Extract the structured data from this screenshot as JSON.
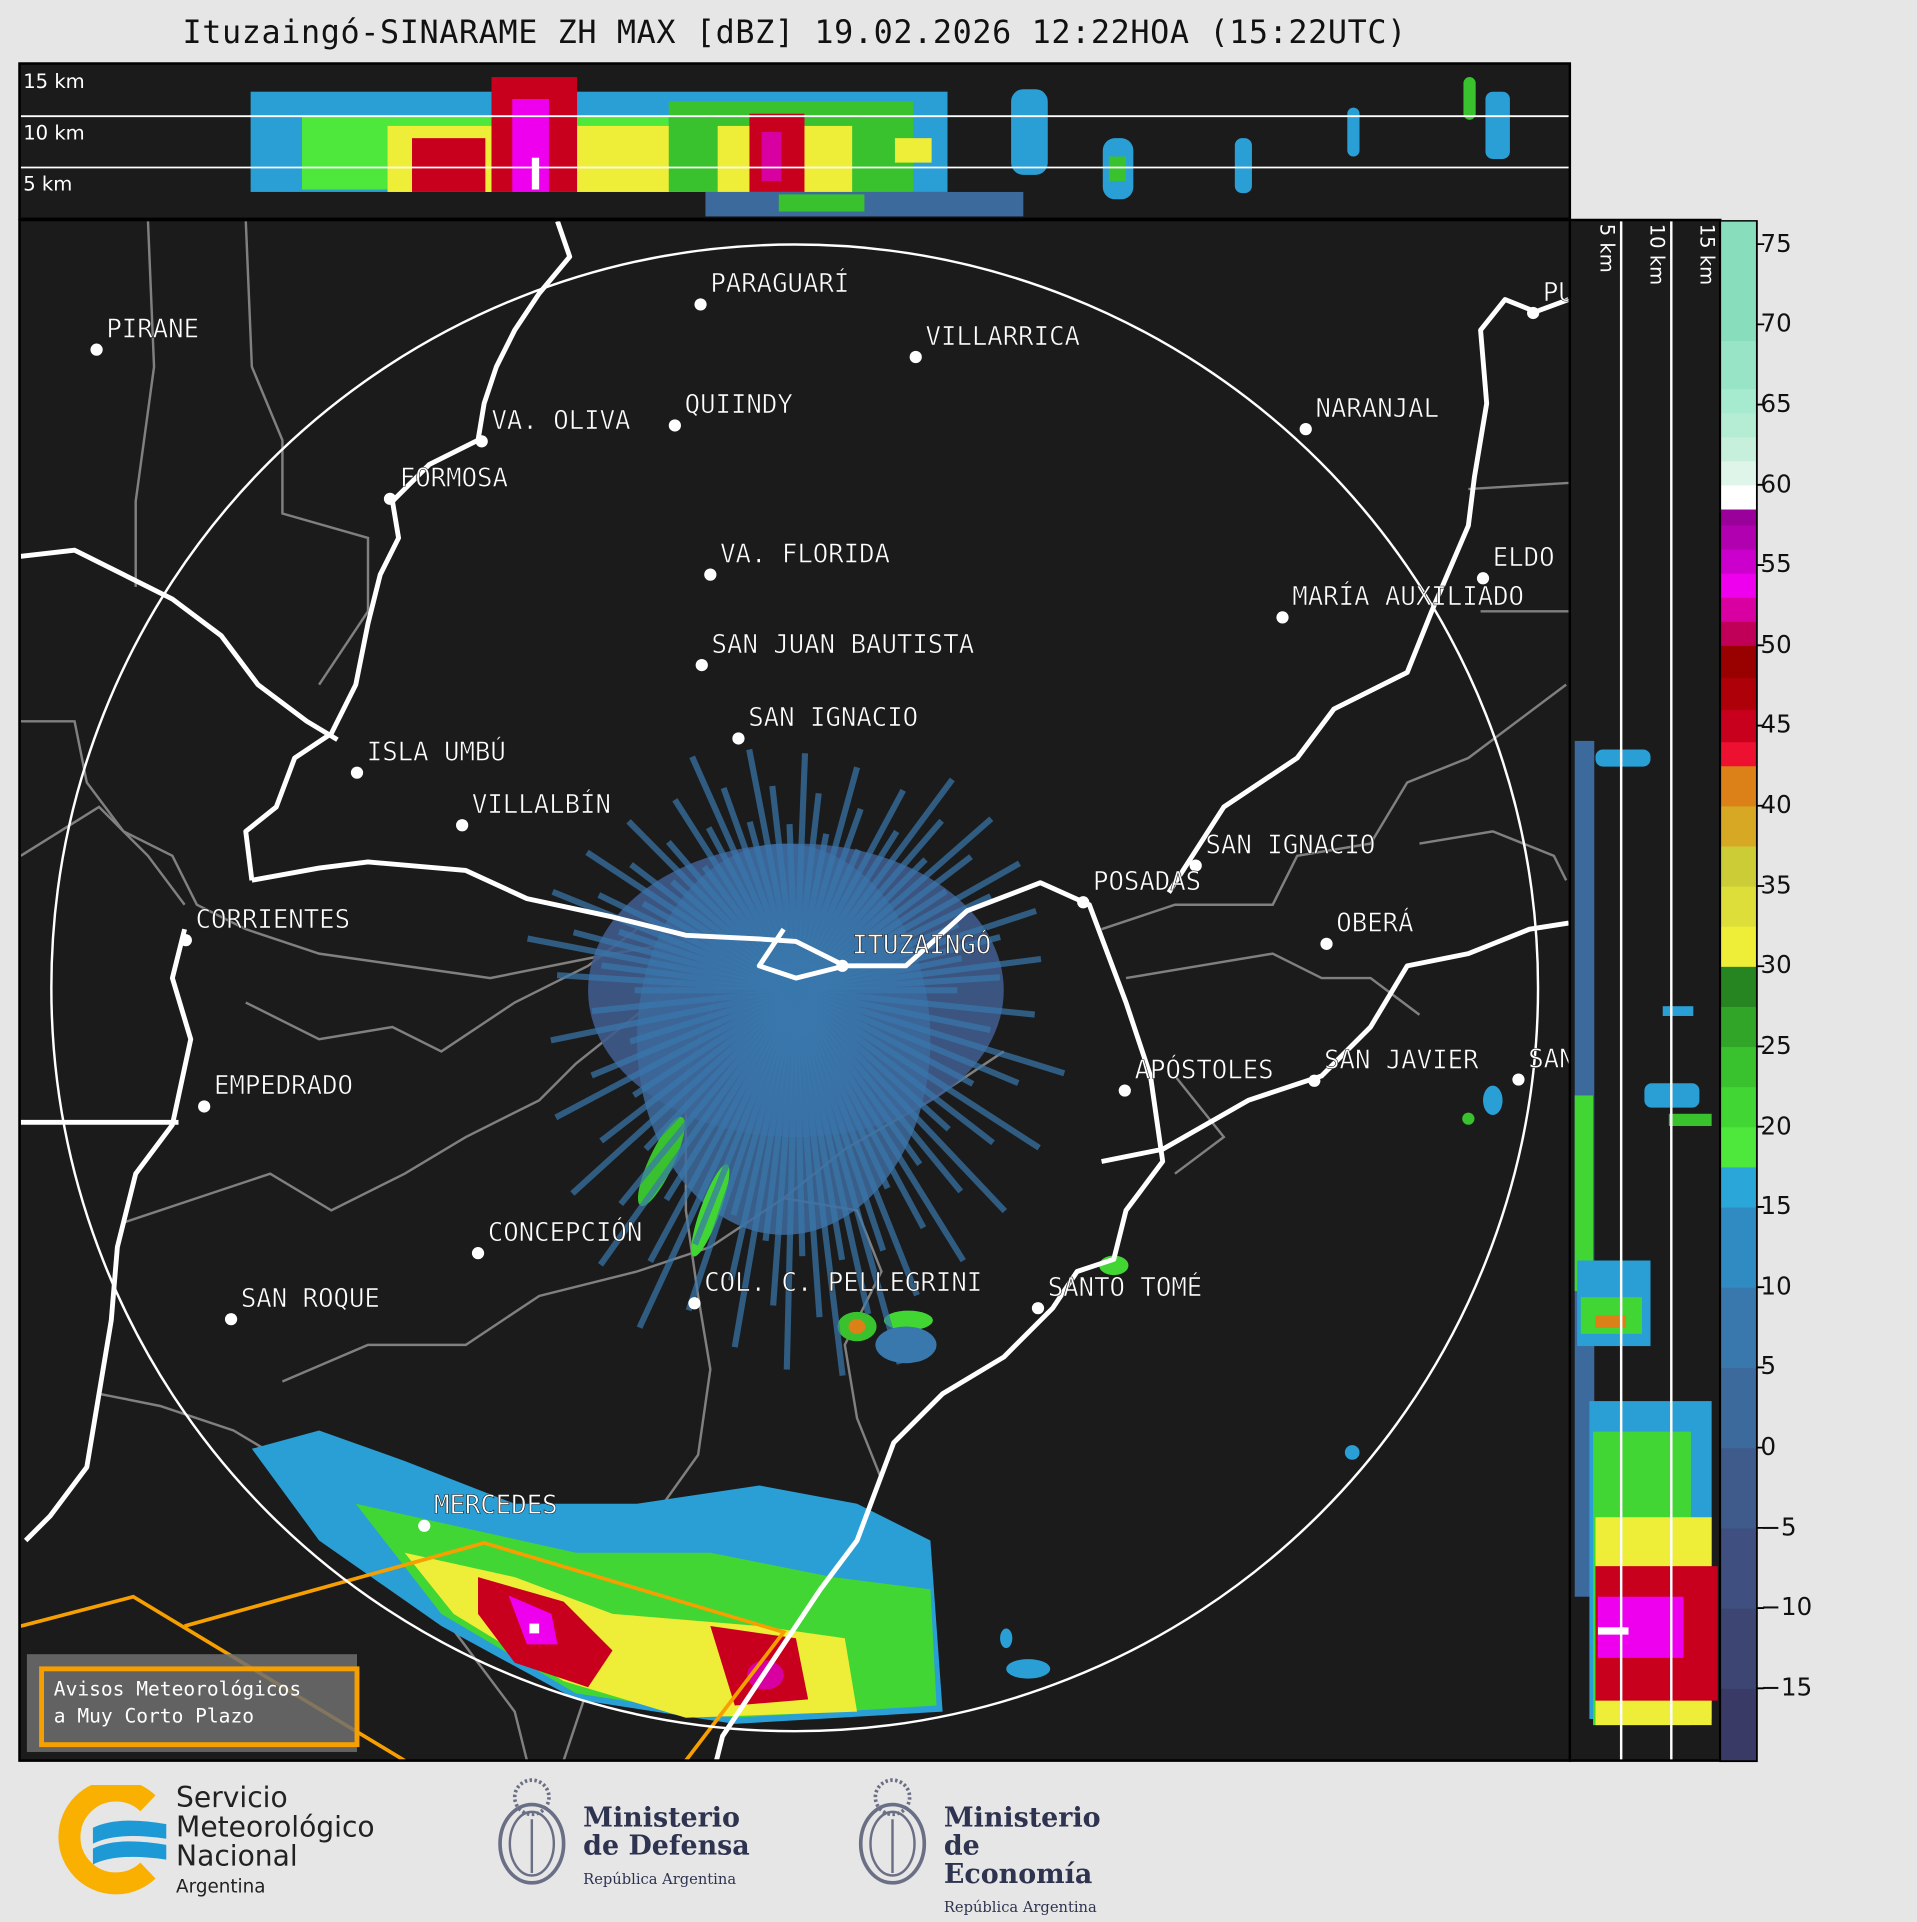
{
  "title": "Ituzaingó-SINARAME ZH MAX [dBZ] 19.02.2026 12:22HOA (15:22UTC)",
  "top_panel": {
    "labels": [
      "15 km",
      "10 km",
      "5 km"
    ]
  },
  "side_panel": {
    "labels": [
      "5 km",
      "10 km",
      "15 km"
    ]
  },
  "colorbar": {
    "range": [
      -19.5,
      76.5
    ],
    "ticks": [
      "75",
      "70",
      "65",
      "60",
      "55",
      "50",
      "45",
      "40",
      "35",
      "30",
      "25",
      "20",
      "15",
      "10",
      "5",
      "0",
      "−5",
      "−10",
      "−15"
    ],
    "tick_values": [
      75,
      70,
      65,
      60,
      55,
      50,
      45,
      40,
      35,
      30,
      25,
      20,
      15,
      10,
      5,
      0,
      -5,
      -10,
      -15
    ],
    "bins": [
      {
        "from": -19.5,
        "to": -15,
        "color": "#3a3a66"
      },
      {
        "from": -15,
        "to": -10,
        "color": "#3d4573"
      },
      {
        "from": -10,
        "to": -5,
        "color": "#3e4f80"
      },
      {
        "from": -5,
        "to": 0,
        "color": "#3f5b8c"
      },
      {
        "from": 0,
        "to": 5,
        "color": "#3d6a9c"
      },
      {
        "from": 5,
        "to": 10,
        "color": "#3978ad"
      },
      {
        "from": 10,
        "to": 15,
        "color": "#2f8bc2"
      },
      {
        "from": 15,
        "to": 17.5,
        "color": "#2aa7d8"
      },
      {
        "from": 17.5,
        "to": 20,
        "color": "#4ee83c"
      },
      {
        "from": 20,
        "to": 22.5,
        "color": "#42d634"
      },
      {
        "from": 22.5,
        "to": 25,
        "color": "#3ac22e"
      },
      {
        "from": 25,
        "to": 27.5,
        "color": "#31a528"
      },
      {
        "from": 27.5,
        "to": 30,
        "color": "#268421"
      },
      {
        "from": 30,
        "to": 32.5,
        "color": "#eeee38"
      },
      {
        "from": 32.5,
        "to": 35,
        "color": "#dede3a"
      },
      {
        "from": 35,
        "to": 37.5,
        "color": "#cccc36"
      },
      {
        "from": 37.5,
        "to": 40,
        "color": "#d6a824"
      },
      {
        "from": 40,
        "to": 42.5,
        "color": "#dc8018"
      },
      {
        "from": 42.5,
        "to": 44,
        "color": "#ee1030"
      },
      {
        "from": 44,
        "to": 46,
        "color": "#c8001e"
      },
      {
        "from": 46,
        "to": 48,
        "color": "#ad0008"
      },
      {
        "from": 48,
        "to": 50,
        "color": "#990000"
      },
      {
        "from": 50,
        "to": 51.5,
        "color": "#c00058"
      },
      {
        "from": 51.5,
        "to": 53,
        "color": "#d800a0"
      },
      {
        "from": 53,
        "to": 54.5,
        "color": "#ee00ee"
      },
      {
        "from": 54.5,
        "to": 56,
        "color": "#cc00cc"
      },
      {
        "from": 56,
        "to": 57.5,
        "color": "#b000b0"
      },
      {
        "from": 57.5,
        "to": 58.5,
        "color": "#9a009a"
      },
      {
        "from": 58.5,
        "to": 60,
        "color": "#ffffff"
      },
      {
        "from": 60,
        "to": 61.5,
        "color": "#dff5ea"
      },
      {
        "from": 61.5,
        "to": 63,
        "color": "#c6f0dc"
      },
      {
        "from": 63,
        "to": 64.5,
        "color": "#b4ecd4"
      },
      {
        "from": 64.5,
        "to": 66,
        "color": "#a6eacf"
      },
      {
        "from": 66,
        "to": 69,
        "color": "#97e4c6"
      },
      {
        "from": 69,
        "to": 76.5,
        "color": "#88debc"
      }
    ]
  },
  "map": {
    "radar": "ITUZAINGÓ",
    "cities": [
      {
        "name": "PIRANE",
        "dot": [
          78,
          286
        ]
      },
      {
        "name": "PARAGUARÍ",
        "dot": [
          572,
          249
        ]
      },
      {
        "name": "VILLARRICA",
        "dot": [
          748,
          292
        ]
      },
      {
        "name": "VA. OLIVA",
        "dot": [
          393,
          361
        ]
      },
      {
        "name": "QUIINDY",
        "dot": [
          551,
          348
        ]
      },
      {
        "name": "NARANJAL",
        "dot": [
          1067,
          351
        ]
      },
      {
        "name": "FORMOSA",
        "dot": [
          318,
          408
        ]
      },
      {
        "name": "VA. FLORIDA",
        "dot": [
          580,
          470
        ]
      },
      {
        "name": "ELDO",
        "dot": [
          1212,
          473
        ]
      },
      {
        "name": "MARÍA AUXILIADO",
        "dot": [
          1048,
          505
        ]
      },
      {
        "name": "SAN JUAN BAUTISTA",
        "dot": [
          573,
          544
        ]
      },
      {
        "name": "SAN IGNACIO",
        "dot": [
          603,
          604
        ]
      },
      {
        "name": "ISLA UMBÚ",
        "dot": [
          291,
          632
        ]
      },
      {
        "name": "VILLALBÍN",
        "dot": [
          377,
          675
        ]
      },
      {
        "name": "SAN IGNACIO",
        "dot": [
          977,
          708
        ]
      },
      {
        "name": "POSADAS",
        "dot": [
          885,
          738
        ]
      },
      {
        "name": "CORRIENTES",
        "dot": [
          151,
          769
        ]
      },
      {
        "name": "ITUZAINGÓ",
        "dot": [
          688,
          790
        ]
      },
      {
        "name": "OBERÁ",
        "dot": [
          1084,
          772
        ]
      },
      {
        "name": "APÓSTOLES",
        "dot": [
          919,
          892
        ]
      },
      {
        "name": "SAN JAVIER",
        "dot": [
          1074,
          884
        ]
      },
      {
        "name": "SAN",
        "dot": [
          1241,
          883
        ]
      },
      {
        "name": "EMPEDRADO",
        "dot": [
          166,
          905
        ]
      },
      {
        "name": "CONCEPCIÓN",
        "dot": [
          390,
          1025
        ]
      },
      {
        "name": "COL. C. PELLEGRINI",
        "dot": [
          567,
          1066
        ]
      },
      {
        "name": "SANTO TOMÉ",
        "dot": [
          848,
          1070
        ]
      },
      {
        "name": "SAN ROQUE",
        "dot": [
          188,
          1079
        ]
      },
      {
        "name": "MERCEDES",
        "dot": [
          346,
          1248
        ]
      },
      {
        "name": "PUE",
        "dot": [
          1253,
          256
        ]
      }
    ]
  },
  "warning_box": {
    "line1": "Avisos Meteorológicos",
    "line2": "a Muy Corto Plazo",
    "color": "#f5a000"
  },
  "footer": {
    "smn": {
      "line1": "Servicio",
      "line2": "Meteorológico",
      "line3": "Nacional",
      "line4": "Argentina"
    },
    "defensa": {
      "line1": "Ministerio",
      "line2": "de Defensa",
      "line3": "República Argentina"
    },
    "economia": {
      "line1": "Ministerio",
      "line2": "de Economía",
      "line3": "República Argentina"
    }
  }
}
